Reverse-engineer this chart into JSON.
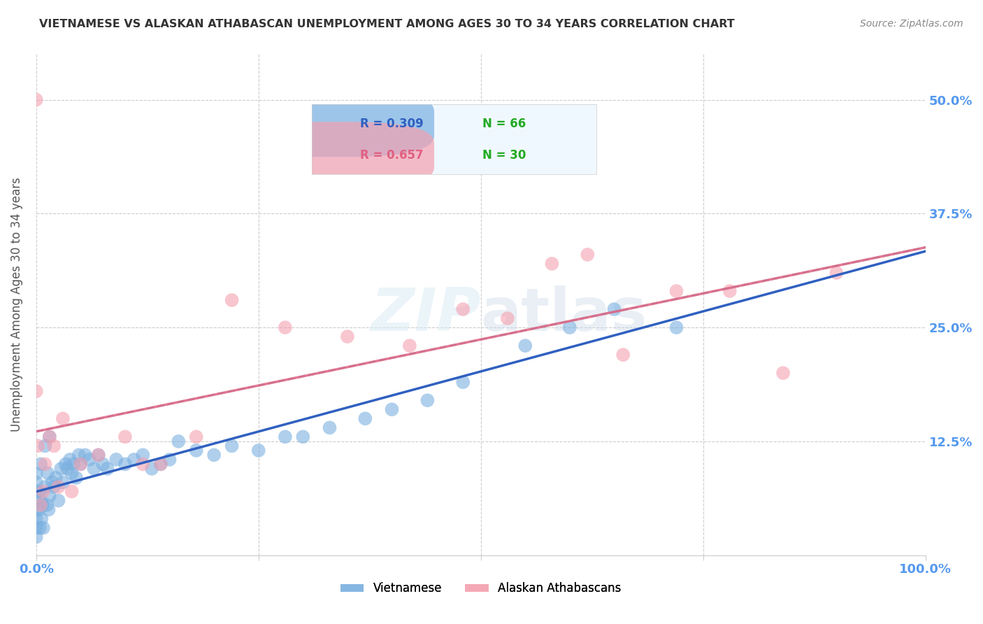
{
  "title": "VIETNAMESE VS ALASKAN ATHABASCAN UNEMPLOYMENT AMONG AGES 30 TO 34 YEARS CORRELATION CHART",
  "source": "Source: ZipAtlas.com",
  "ylabel": "Unemployment Among Ages 30 to 34 years",
  "xlim": [
    0.0,
    1.0
  ],
  "ylim": [
    0.0,
    0.55
  ],
  "background_color": "#ffffff",
  "grid_color": "#cccccc",
  "legend_R1": "R = 0.309",
  "legend_N1": "N = 66",
  "legend_R2": "R = 0.657",
  "legend_N2": "N = 30",
  "blue_color": "#7ab0e0",
  "pink_color": "#f4a0b0",
  "blue_line_color": "#3060c0",
  "pink_line_color": "#e06080",
  "dashed_line_color": "#90c8d8",
  "title_color": "#333333",
  "axis_label_color": "#5599ee",
  "source_color": "#888888",
  "green_color": "#22aa22",
  "viet_x": [
    0.0,
    0.0,
    0.0,
    0.0,
    0.0,
    0.0,
    0.0,
    0.0,
    0.003,
    0.003,
    0.004,
    0.005,
    0.005,
    0.006,
    0.007,
    0.008,
    0.01,
    0.01,
    0.012,
    0.013,
    0.014,
    0.015,
    0.015,
    0.018,
    0.02,
    0.022,
    0.025,
    0.028,
    0.03,
    0.033,
    0.035,
    0.038,
    0.04,
    0.042,
    0.045,
    0.048,
    0.05,
    0.055,
    0.06,
    0.065,
    0.07,
    0.075,
    0.08,
    0.09,
    0.1,
    0.11,
    0.12,
    0.13,
    0.14,
    0.15,
    0.16,
    0.18,
    0.2,
    0.22,
    0.25,
    0.28,
    0.3,
    0.33,
    0.37,
    0.4,
    0.44,
    0.48,
    0.55,
    0.6,
    0.65,
    0.72
  ],
  "viet_y": [
    0.02,
    0.03,
    0.04,
    0.05,
    0.06,
    0.07,
    0.08,
    0.09,
    0.05,
    0.07,
    0.03,
    0.06,
    0.1,
    0.04,
    0.055,
    0.03,
    0.075,
    0.12,
    0.055,
    0.09,
    0.05,
    0.065,
    0.13,
    0.08,
    0.075,
    0.085,
    0.06,
    0.095,
    0.08,
    0.1,
    0.095,
    0.105,
    0.09,
    0.1,
    0.085,
    0.11,
    0.1,
    0.11,
    0.105,
    0.095,
    0.11,
    0.1,
    0.095,
    0.105,
    0.1,
    0.105,
    0.11,
    0.095,
    0.1,
    0.105,
    0.125,
    0.115,
    0.11,
    0.12,
    0.115,
    0.13,
    0.13,
    0.14,
    0.15,
    0.16,
    0.17,
    0.19,
    0.23,
    0.25,
    0.27,
    0.25
  ],
  "alas_x": [
    0.0,
    0.0,
    0.002,
    0.005,
    0.008,
    0.01,
    0.015,
    0.02,
    0.025,
    0.03,
    0.04,
    0.05,
    0.07,
    0.1,
    0.12,
    0.14,
    0.18,
    0.22,
    0.28,
    0.35,
    0.42,
    0.48,
    0.53,
    0.58,
    0.62,
    0.66,
    0.72,
    0.78,
    0.84,
    0.9
  ],
  "alas_y": [
    0.5,
    0.18,
    0.12,
    0.055,
    0.07,
    0.1,
    0.13,
    0.12,
    0.075,
    0.15,
    0.07,
    0.1,
    0.11,
    0.13,
    0.1,
    0.1,
    0.13,
    0.28,
    0.25,
    0.24,
    0.23,
    0.27,
    0.26,
    0.32,
    0.33,
    0.22,
    0.29,
    0.29,
    0.2,
    0.31
  ]
}
